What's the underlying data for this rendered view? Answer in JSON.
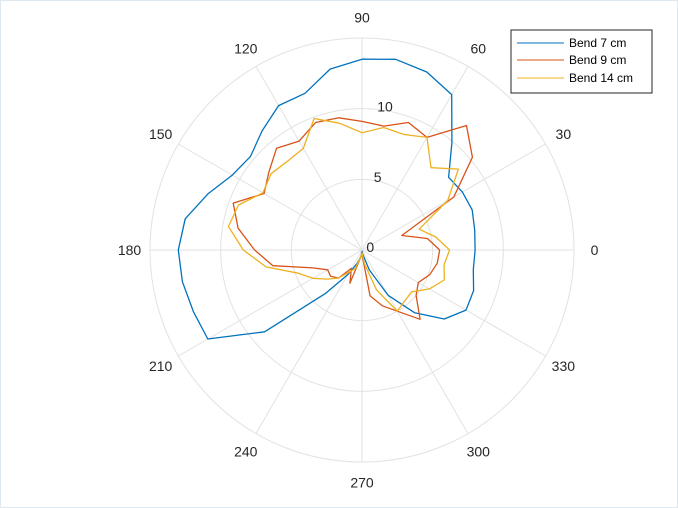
{
  "chart_data": {
    "type": "polar-line",
    "title": "",
    "theta_ticks": [
      "0",
      "30",
      "60",
      "90",
      "120",
      "150",
      "180",
      "210",
      "240",
      "270",
      "300",
      "330"
    ],
    "r_ticks": [
      "0",
      "5",
      "10"
    ],
    "rlim": [
      0,
      15
    ],
    "grid": true,
    "legend_position": "top-right",
    "theta_unit": "degrees",
    "series": [
      {
        "name": "Bend 7 cm",
        "color": "#0072BD",
        "points": [
          [
            0,
            8.0
          ],
          [
            10,
            8.1
          ],
          [
            20,
            8.3
          ],
          [
            30,
            8.2
          ],
          [
            40,
            8.0
          ],
          [
            50,
            9.9
          ],
          [
            60,
            12.7
          ],
          [
            70,
            13.4
          ],
          [
            80,
            13.7
          ],
          [
            90,
            13.5
          ],
          [
            100,
            13.0
          ],
          [
            110,
            11.8
          ],
          [
            120,
            11.8
          ],
          [
            130,
            11.0
          ],
          [
            140,
            10.3
          ],
          [
            150,
            10.6
          ],
          [
            160,
            11.6
          ],
          [
            170,
            12.7
          ],
          [
            180,
            13.0
          ],
          [
            190,
            12.9
          ],
          [
            200,
            12.7
          ],
          [
            210,
            12.6
          ],
          [
            220,
            9.0
          ],
          [
            230,
            4.0
          ],
          [
            240,
            2.0
          ],
          [
            250,
            1.0
          ],
          [
            260,
            0.5
          ],
          [
            270,
            0.1
          ],
          [
            280,
            0.3
          ],
          [
            290,
            1.5
          ],
          [
            300,
            3.7
          ],
          [
            310,
            5.8
          ],
          [
            320,
            7.6
          ],
          [
            330,
            8.5
          ],
          [
            340,
            8.4
          ],
          [
            350,
            8.0
          ],
          [
            360,
            8.0
          ]
        ]
      },
      {
        "name": "Bend 9 cm",
        "color": "#D95319",
        "points": [
          [
            0,
            5.5
          ],
          [
            10,
            4.7
          ],
          [
            20,
            3.0
          ],
          [
            30,
            7.5
          ],
          [
            40,
            10.2
          ],
          [
            50,
            11.5
          ],
          [
            60,
            9.2
          ],
          [
            70,
            9.6
          ],
          [
            80,
            8.9
          ],
          [
            90,
            9.1
          ],
          [
            100,
            9.5
          ],
          [
            110,
            9.6
          ],
          [
            120,
            8.9
          ],
          [
            130,
            9.4
          ],
          [
            140,
            8.6
          ],
          [
            150,
            8.0
          ],
          [
            160,
            9.7
          ],
          [
            170,
            8.9
          ],
          [
            180,
            7.6
          ],
          [
            190,
            6.4
          ],
          [
            200,
            3.7
          ],
          [
            210,
            2.8
          ],
          [
            220,
            2.9
          ],
          [
            230,
            2.6
          ],
          [
            240,
            1.5
          ],
          [
            250,
            2.5
          ],
          [
            260,
            0.5
          ],
          [
            270,
            0.3
          ],
          [
            280,
            3.3
          ],
          [
            290,
            4.2
          ],
          [
            300,
            5.0
          ],
          [
            310,
            6.4
          ],
          [
            320,
            5.0
          ],
          [
            330,
            4.6
          ],
          [
            340,
            5.1
          ],
          [
            350,
            5.4
          ],
          [
            360,
            5.5
          ]
        ]
      },
      {
        "name": "Bend 14 cm",
        "color": "#EDB120",
        "points": [
          [
            0,
            6.2
          ],
          [
            10,
            5.3
          ],
          [
            20,
            4.3
          ],
          [
            30,
            7.0
          ],
          [
            40,
            8.9
          ],
          [
            50,
            7.6
          ],
          [
            60,
            9.2
          ],
          [
            70,
            8.7
          ],
          [
            80,
            8.8
          ],
          [
            90,
            8.3
          ],
          [
            100,
            9.1
          ],
          [
            110,
            9.9
          ],
          [
            120,
            8.3
          ],
          [
            130,
            8.2
          ],
          [
            140,
            8.4
          ],
          [
            150,
            8.1
          ],
          [
            160,
            9.3
          ],
          [
            170,
            9.6
          ],
          [
            180,
            8.4
          ],
          [
            190,
            6.9
          ],
          [
            200,
            4.8
          ],
          [
            210,
            4.0
          ],
          [
            220,
            3.2
          ],
          [
            230,
            2.6
          ],
          [
            240,
            1.8
          ],
          [
            250,
            1.4
          ],
          [
            260,
            0.5
          ],
          [
            270,
            0.2
          ],
          [
            280,
            1.0
          ],
          [
            290,
            3.0
          ],
          [
            300,
            5.0
          ],
          [
            310,
            4.7
          ],
          [
            320,
            4.6
          ],
          [
            330,
            5.5
          ],
          [
            340,
            6.2
          ],
          [
            350,
            5.9
          ],
          [
            360,
            6.2
          ]
        ]
      }
    ]
  }
}
